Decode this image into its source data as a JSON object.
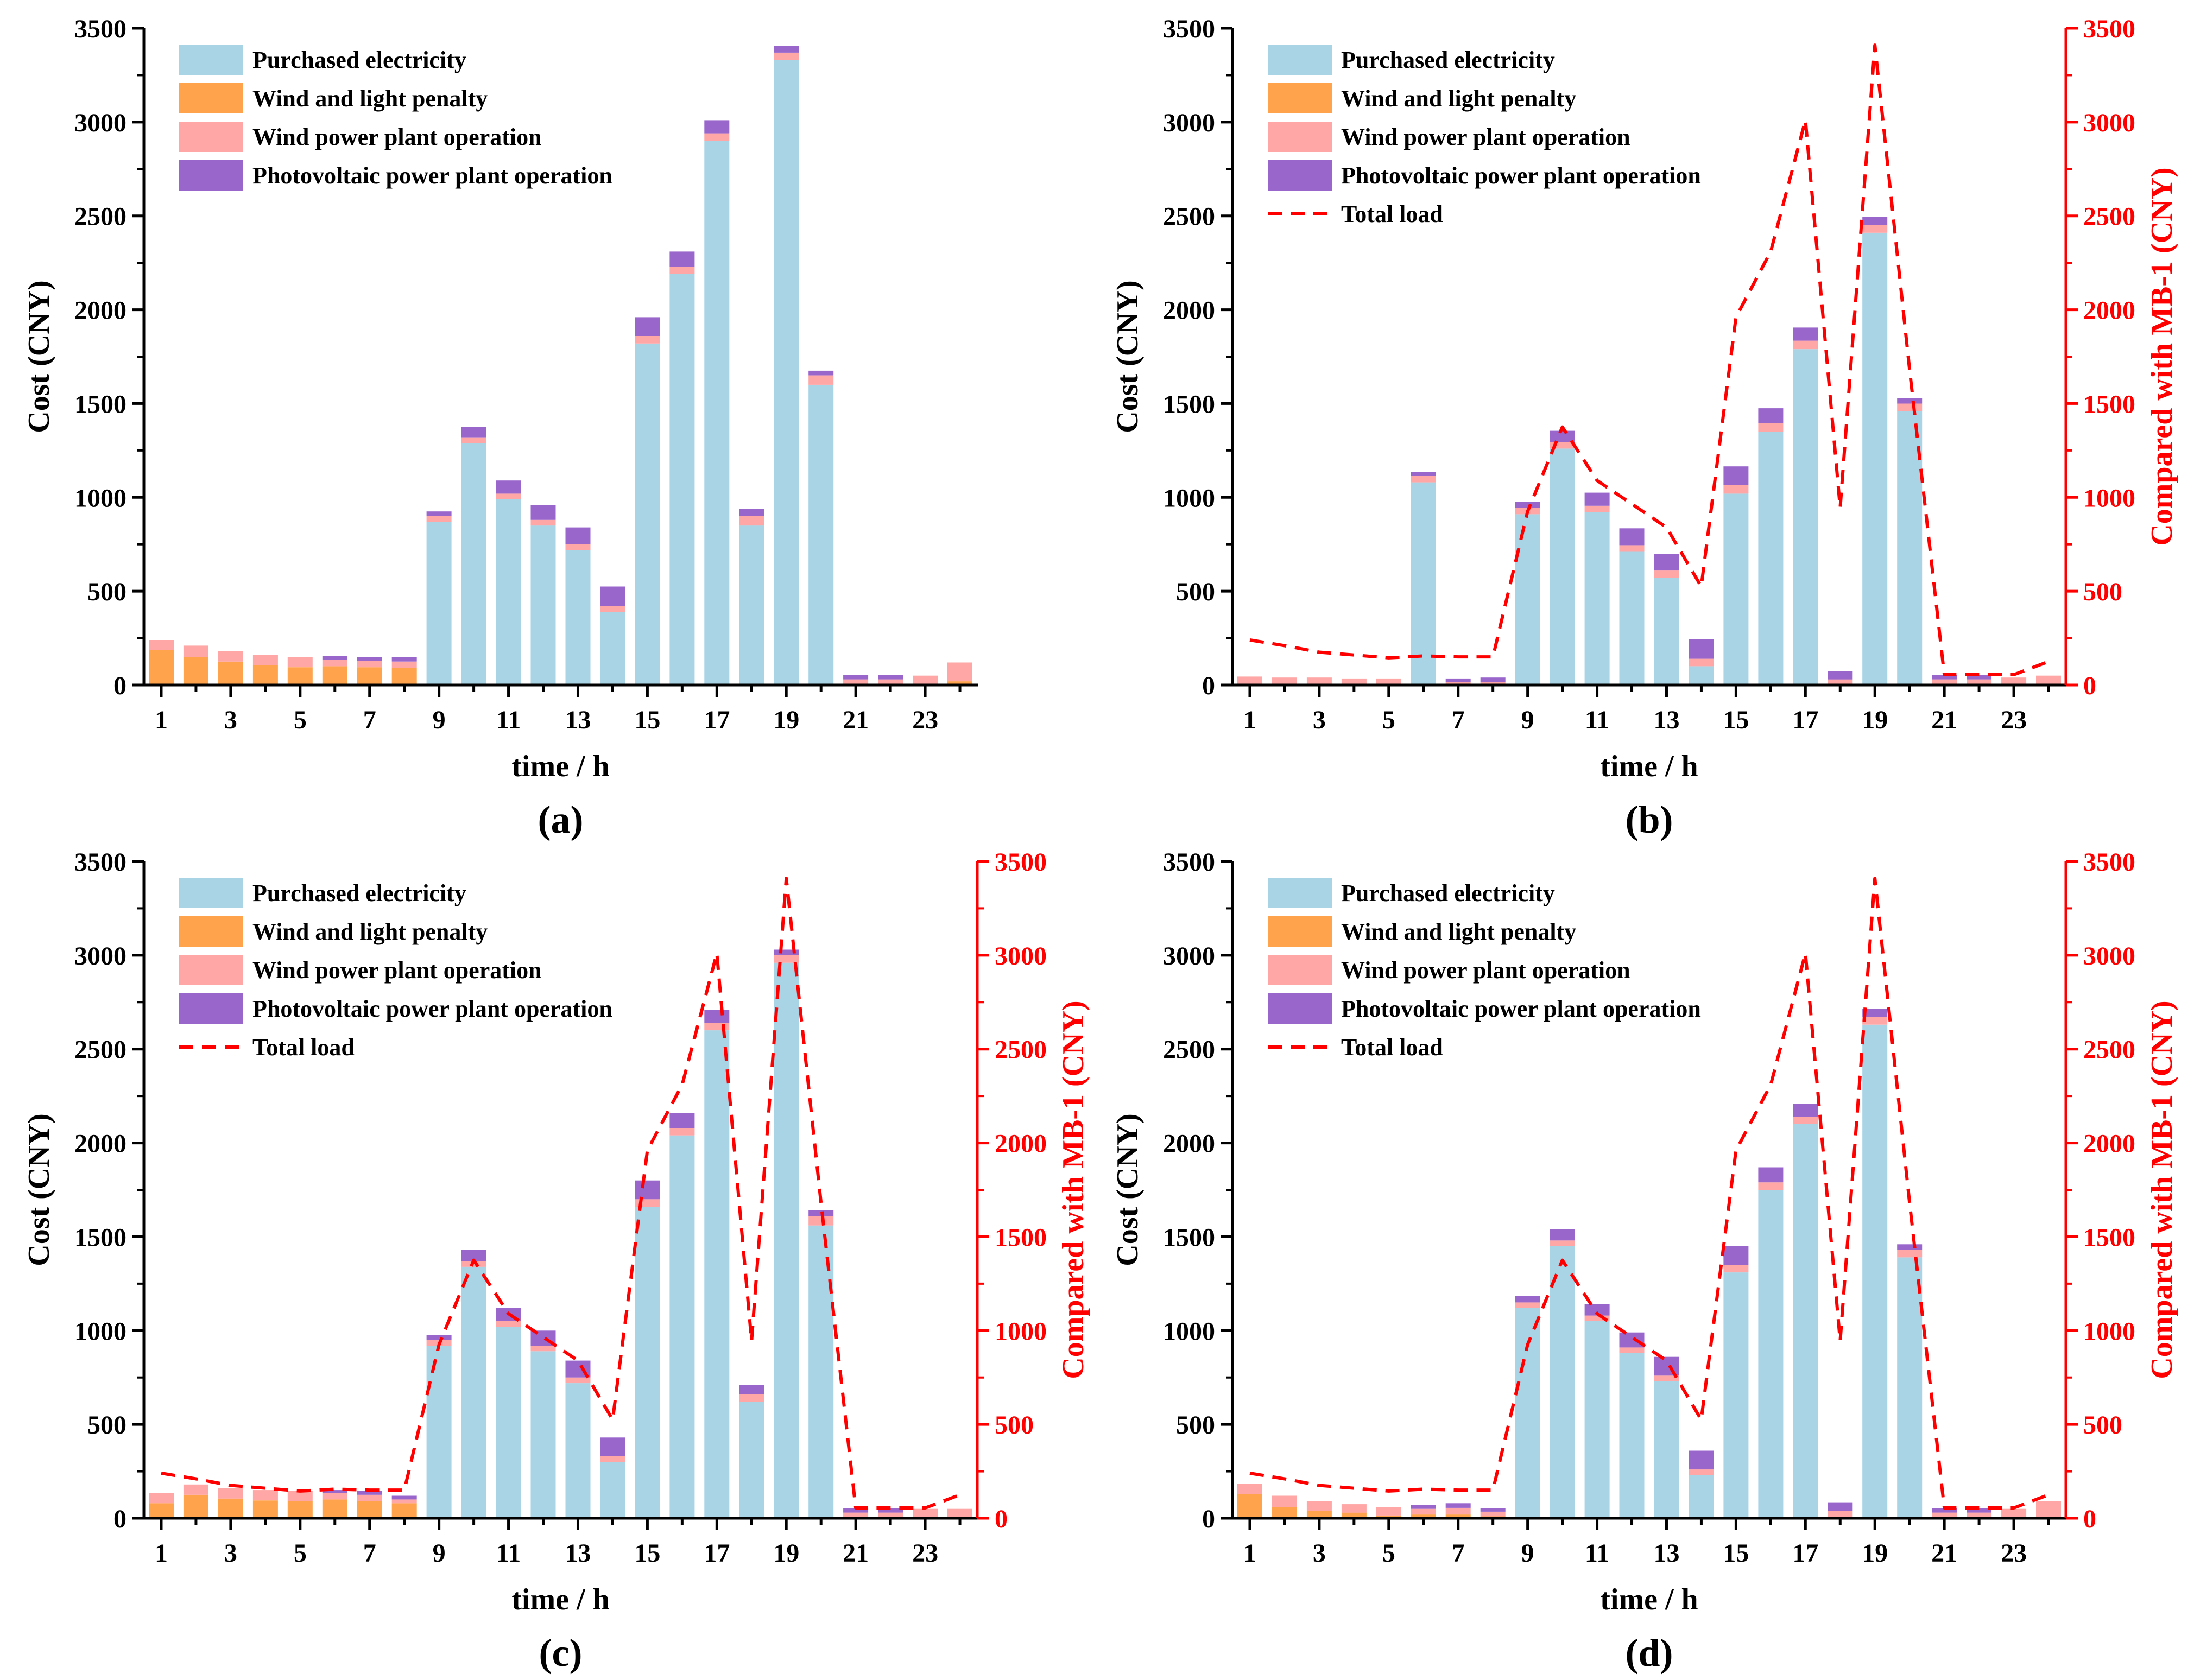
{
  "figure": {
    "colors": {
      "purchased": "#a8d4e6",
      "penalty": "#ffa34d",
      "wind": "#ffa6a6",
      "pv": "#9966cc",
      "total_load": "#ff0000",
      "right_axis": "#ff0000"
    }
  },
  "chart_data": [
    {
      "panel": "(a)",
      "type": "bar",
      "stacked": true,
      "xlabel": "time / h",
      "ylabel": "Cost (CNY)",
      "ylim": [
        0,
        3500
      ],
      "yticks": [
        0,
        500,
        1000,
        1500,
        2000,
        2500,
        3000,
        3500
      ],
      "xticks": [
        1,
        3,
        5,
        7,
        9,
        11,
        13,
        15,
        17,
        19,
        21,
        23
      ],
      "x": [
        1,
        2,
        3,
        4,
        5,
        6,
        7,
        8,
        9,
        10,
        11,
        12,
        13,
        14,
        15,
        16,
        17,
        18,
        19,
        20,
        21,
        22,
        23,
        24
      ],
      "legend": [
        "Purchased electricity",
        "Wind and light penalty",
        "Wind power plant operation",
        "Photovoltaic power plant operation"
      ],
      "series": [
        {
          "name": "Purchased electricity",
          "values": [
            0,
            0,
            0,
            0,
            0,
            0,
            0,
            0,
            870,
            1290,
            990,
            850,
            720,
            390,
            1820,
            2190,
            2900,
            850,
            3330,
            1600,
            0,
            0,
            0,
            0
          ]
        },
        {
          "name": "Wind and light penalty",
          "values": [
            185,
            150,
            125,
            105,
            95,
            100,
            95,
            90,
            0,
            0,
            0,
            0,
            0,
            0,
            0,
            0,
            0,
            0,
            0,
            0,
            0,
            0,
            0,
            20
          ]
        },
        {
          "name": "Wind power plant operation",
          "values": [
            55,
            60,
            55,
            55,
            55,
            35,
            35,
            35,
            30,
            30,
            30,
            30,
            30,
            30,
            40,
            40,
            40,
            50,
            40,
            50,
            30,
            30,
            50,
            100
          ]
        },
        {
          "name": "Photovoltaic power plant operation",
          "values": [
            0,
            0,
            0,
            0,
            0,
            20,
            20,
            25,
            25,
            55,
            70,
            80,
            90,
            105,
            100,
            80,
            70,
            40,
            35,
            25,
            25,
            25,
            0,
            0
          ]
        }
      ],
      "right_axis": null
    },
    {
      "panel": "(b)",
      "type": "bar",
      "stacked": true,
      "xlabel": "time / h",
      "ylabel": "Cost (CNY)",
      "ylim": [
        0,
        3500
      ],
      "yticks": [
        0,
        500,
        1000,
        1500,
        2000,
        2500,
        3000,
        3500
      ],
      "xticks": [
        1,
        3,
        5,
        7,
        9,
        11,
        13,
        15,
        17,
        19,
        21,
        23
      ],
      "x": [
        1,
        2,
        3,
        4,
        5,
        6,
        7,
        8,
        9,
        10,
        11,
        12,
        13,
        14,
        15,
        16,
        17,
        18,
        19,
        20,
        21,
        22,
        23,
        24
      ],
      "legend": [
        "Purchased electricity",
        "Wind and light penalty",
        "Wind power plant operation",
        "Photovoltaic power plant operation",
        "Total load"
      ],
      "series": [
        {
          "name": "Purchased electricity",
          "values": [
            0,
            0,
            0,
            0,
            0,
            1080,
            0,
            0,
            910,
            1260,
            920,
            710,
            570,
            100,
            1020,
            1350,
            1790,
            0,
            2410,
            1460,
            0,
            0,
            0,
            0
          ]
        },
        {
          "name": "Wind and light penalty",
          "values": [
            0,
            0,
            0,
            0,
            0,
            0,
            0,
            0,
            0,
            0,
            0,
            0,
            0,
            0,
            0,
            0,
            0,
            0,
            0,
            0,
            0,
            0,
            0,
            0
          ]
        },
        {
          "name": "Wind power plant operation",
          "values": [
            45,
            40,
            40,
            35,
            35,
            35,
            15,
            15,
            35,
            35,
            35,
            35,
            40,
            40,
            45,
            45,
            45,
            30,
            40,
            40,
            30,
            30,
            40,
            50
          ]
        },
        {
          "name": "Photovoltaic power plant operation",
          "values": [
            0,
            0,
            0,
            0,
            0,
            20,
            20,
            25,
            30,
            60,
            70,
            90,
            90,
            105,
            100,
            80,
            70,
            45,
            45,
            30,
            25,
            25,
            0,
            0
          ]
        }
      ],
      "right_axis": {
        "label": "Compared with MB-1 (CNY)",
        "ylim": [
          0,
          3500
        ],
        "yticks": [
          0,
          500,
          1000,
          1500,
          2000,
          2500,
          3000,
          3500
        ]
      },
      "line": {
        "name": "Total load",
        "values": [
          240,
          210,
          175,
          160,
          145,
          155,
          150,
          150,
          925,
          1375,
          1090,
          965,
          840,
          525,
          1960,
          2310,
          3010,
          945,
          3410,
          1680,
          55,
          55,
          55,
          125
        ]
      }
    },
    {
      "panel": "(c)",
      "type": "bar",
      "stacked": true,
      "xlabel": "time / h",
      "ylabel": "Cost (CNY)",
      "ylim": [
        0,
        3500
      ],
      "yticks": [
        0,
        500,
        1000,
        1500,
        2000,
        2500,
        3000,
        3500
      ],
      "xticks": [
        1,
        3,
        5,
        7,
        9,
        11,
        13,
        15,
        17,
        19,
        21,
        23
      ],
      "x": [
        1,
        2,
        3,
        4,
        5,
        6,
        7,
        8,
        9,
        10,
        11,
        12,
        13,
        14,
        15,
        16,
        17,
        18,
        19,
        20,
        21,
        22,
        23,
        24
      ],
      "legend": [
        "Purchased electricity",
        "Wind and light penalty",
        "Wind power plant operation",
        "Photovoltaic power plant operation",
        "Total load"
      ],
      "series": [
        {
          "name": "Purchased electricity",
          "values": [
            0,
            0,
            0,
            0,
            0,
            0,
            0,
            0,
            920,
            1340,
            1020,
            890,
            720,
            300,
            1660,
            2040,
            2600,
            620,
            2960,
            1560,
            0,
            0,
            0,
            0
          ]
        },
        {
          "name": "Wind and light penalty",
          "values": [
            80,
            125,
            105,
            95,
            90,
            100,
            90,
            80,
            0,
            0,
            0,
            0,
            0,
            0,
            0,
            0,
            0,
            0,
            0,
            0,
            0,
            0,
            0,
            0
          ]
        },
        {
          "name": "Wind power plant operation",
          "values": [
            55,
            55,
            55,
            55,
            55,
            35,
            35,
            20,
            30,
            30,
            30,
            30,
            30,
            30,
            40,
            40,
            40,
            40,
            40,
            50,
            30,
            30,
            50,
            50
          ]
        },
        {
          "name": "Photovoltaic power plant operation",
          "values": [
            0,
            0,
            0,
            0,
            0,
            15,
            20,
            20,
            25,
            60,
            70,
            80,
            90,
            100,
            100,
            80,
            70,
            50,
            30,
            30,
            25,
            25,
            0,
            0
          ]
        }
      ],
      "right_axis": {
        "label": "Compared with MB-1 (CNY)",
        "ylim": [
          0,
          3500
        ],
        "yticks": [
          0,
          500,
          1000,
          1500,
          2000,
          2500,
          3000,
          3500
        ]
      },
      "line": {
        "name": "Total load",
        "values": [
          240,
          210,
          175,
          160,
          145,
          155,
          150,
          150,
          925,
          1375,
          1090,
          965,
          840,
          525,
          1960,
          2310,
          3010,
          945,
          3410,
          1680,
          55,
          55,
          55,
          125
        ]
      }
    },
    {
      "panel": "(d)",
      "type": "bar",
      "stacked": true,
      "xlabel": "time / h",
      "ylabel": "Cost (CNY)",
      "ylim": [
        0,
        3500
      ],
      "yticks": [
        0,
        500,
        1000,
        1500,
        2000,
        2500,
        3000,
        3500
      ],
      "xticks": [
        1,
        3,
        5,
        7,
        9,
        11,
        13,
        15,
        17,
        19,
        21,
        23
      ],
      "x": [
        1,
        2,
        3,
        4,
        5,
        6,
        7,
        8,
        9,
        10,
        11,
        12,
        13,
        14,
        15,
        16,
        17,
        18,
        19,
        20,
        21,
        22,
        23,
        24
      ],
      "legend": [
        "Purchased electricity",
        "Wind and light penalty",
        "Wind power plant operation",
        "Photovoltaic power plant operation",
        "Total load"
      ],
      "series": [
        {
          "name": "Purchased electricity",
          "values": [
            0,
            0,
            0,
            0,
            0,
            0,
            0,
            0,
            1120,
            1450,
            1050,
            880,
            730,
            230,
            1310,
            1750,
            2100,
            0,
            2630,
            1390,
            0,
            0,
            0,
            0
          ]
        },
        {
          "name": "Wind and light penalty",
          "values": [
            130,
            60,
            40,
            30,
            15,
            20,
            20,
            10,
            0,
            0,
            0,
            0,
            0,
            0,
            0,
            0,
            0,
            0,
            0,
            0,
            0,
            0,
            0,
            0
          ]
        },
        {
          "name": "Wind power plant operation",
          "values": [
            55,
            60,
            50,
            45,
            45,
            30,
            35,
            25,
            30,
            30,
            30,
            30,
            30,
            30,
            40,
            40,
            40,
            40,
            40,
            40,
            30,
            30,
            50,
            90
          ]
        },
        {
          "name": "Photovoltaic power plant operation",
          "values": [
            0,
            0,
            0,
            0,
            0,
            20,
            25,
            20,
            35,
            60,
            60,
            80,
            100,
            100,
            100,
            80,
            70,
            45,
            45,
            30,
            25,
            25,
            0,
            0
          ]
        }
      ],
      "right_axis": {
        "label": "Compared with MB-1 (CNY)",
        "ylim": [
          0,
          3500
        ],
        "yticks": [
          0,
          500,
          1000,
          1500,
          2000,
          2500,
          3000,
          3500
        ]
      },
      "line": {
        "name": "Total load",
        "values": [
          240,
          210,
          175,
          160,
          145,
          155,
          150,
          150,
          925,
          1375,
          1090,
          965,
          840,
          525,
          1960,
          2310,
          3010,
          945,
          3410,
          1680,
          55,
          55,
          55,
          125
        ]
      }
    }
  ]
}
